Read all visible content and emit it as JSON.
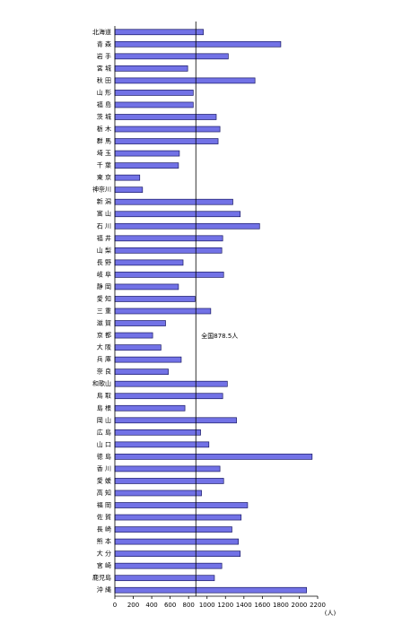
{
  "chart_data": {
    "type": "barh",
    "categories": [
      "北海道",
      "青 森",
      "岩 手",
      "宮 城",
      "秋 田",
      "山 形",
      "福 島",
      "茨 城",
      "栃 木",
      "群 馬",
      "埼 玉",
      "千 葉",
      "東 京",
      "神奈川",
      "新 潟",
      "富 山",
      "石 川",
      "福 井",
      "山 梨",
      "長 野",
      "岐 阜",
      "静 岡",
      "愛 知",
      "三 重",
      "滋 賀",
      "京 都",
      "大 阪",
      "兵 庫",
      "奈 良",
      "和歌山",
      "鳥 取",
      "島 根",
      "岡 山",
      "広 島",
      "山 口",
      "徳 島",
      "香 川",
      "愛 媛",
      "高 知",
      "福 岡",
      "佐 賀",
      "長 崎",
      "熊 本",
      "大 分",
      "宮 崎",
      "鹿児島",
      "沖 縄"
    ],
    "values": [
      960,
      1800,
      1230,
      790,
      1520,
      850,
      850,
      1100,
      1140,
      1120,
      700,
      690,
      270,
      300,
      1280,
      1360,
      1570,
      1170,
      1160,
      740,
      1180,
      690,
      870,
      1040,
      550,
      410,
      500,
      720,
      580,
      1220,
      1170,
      760,
      1320,
      930,
      1020,
      2140,
      1140,
      1180,
      940,
      1440,
      1370,
      1270,
      1340,
      1360,
      1160,
      1080,
      2080
    ],
    "color": "#7272e6",
    "xlim": [
      0,
      2200
    ],
    "xticks": [
      0,
      200,
      400,
      600,
      800,
      1000,
      1200,
      1400,
      1600,
      1800,
      2000,
      2200
    ],
    "x_unit": "(人)",
    "reference": {
      "value": 878.5,
      "label": "全国878.5人"
    }
  }
}
